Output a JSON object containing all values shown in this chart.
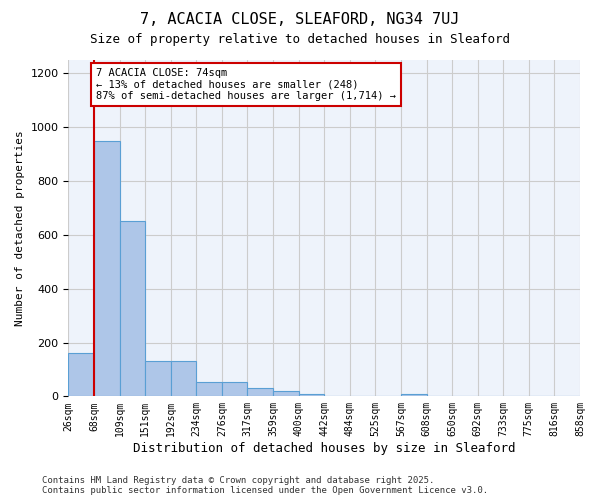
{
  "title1": "7, ACACIA CLOSE, SLEAFORD, NG34 7UJ",
  "title2": "Size of property relative to detached houses in Sleaford",
  "xlabel": "Distribution of detached houses by size in Sleaford",
  "ylabel": "Number of detached properties",
  "bin_labels": [
    "26sqm",
    "68sqm",
    "109sqm",
    "151sqm",
    "192sqm",
    "234sqm",
    "276sqm",
    "317sqm",
    "359sqm",
    "400sqm",
    "442sqm",
    "484sqm",
    "525sqm",
    "567sqm",
    "608sqm",
    "650sqm",
    "692sqm",
    "733sqm",
    "775sqm",
    "816sqm",
    "858sqm"
  ],
  "bar_values": [
    160,
    950,
    650,
    130,
    130,
    55,
    55,
    30,
    20,
    10,
    0,
    0,
    0,
    10,
    0,
    0,
    0,
    0,
    0,
    0
  ],
  "bar_color": "#aec6e8",
  "bar_edge_color": "#5a9fd4",
  "grid_color": "#cccccc",
  "bg_color": "#eef3fb",
  "annotation_text": "7 ACACIA CLOSE: 74sqm\n← 13% of detached houses are smaller (248)\n87% of semi-detached houses are larger (1,714) →",
  "annotation_box_color": "#ffffff",
  "annotation_box_edge": "#cc0000",
  "vline_color": "#cc0000",
  "vline_x": 0.5,
  "ylim": [
    0,
    1250
  ],
  "yticks": [
    0,
    200,
    400,
    600,
    800,
    1000,
    1200
  ],
  "footer_text": "Contains HM Land Registry data © Crown copyright and database right 2025.\nContains public sector information licensed under the Open Government Licence v3.0."
}
